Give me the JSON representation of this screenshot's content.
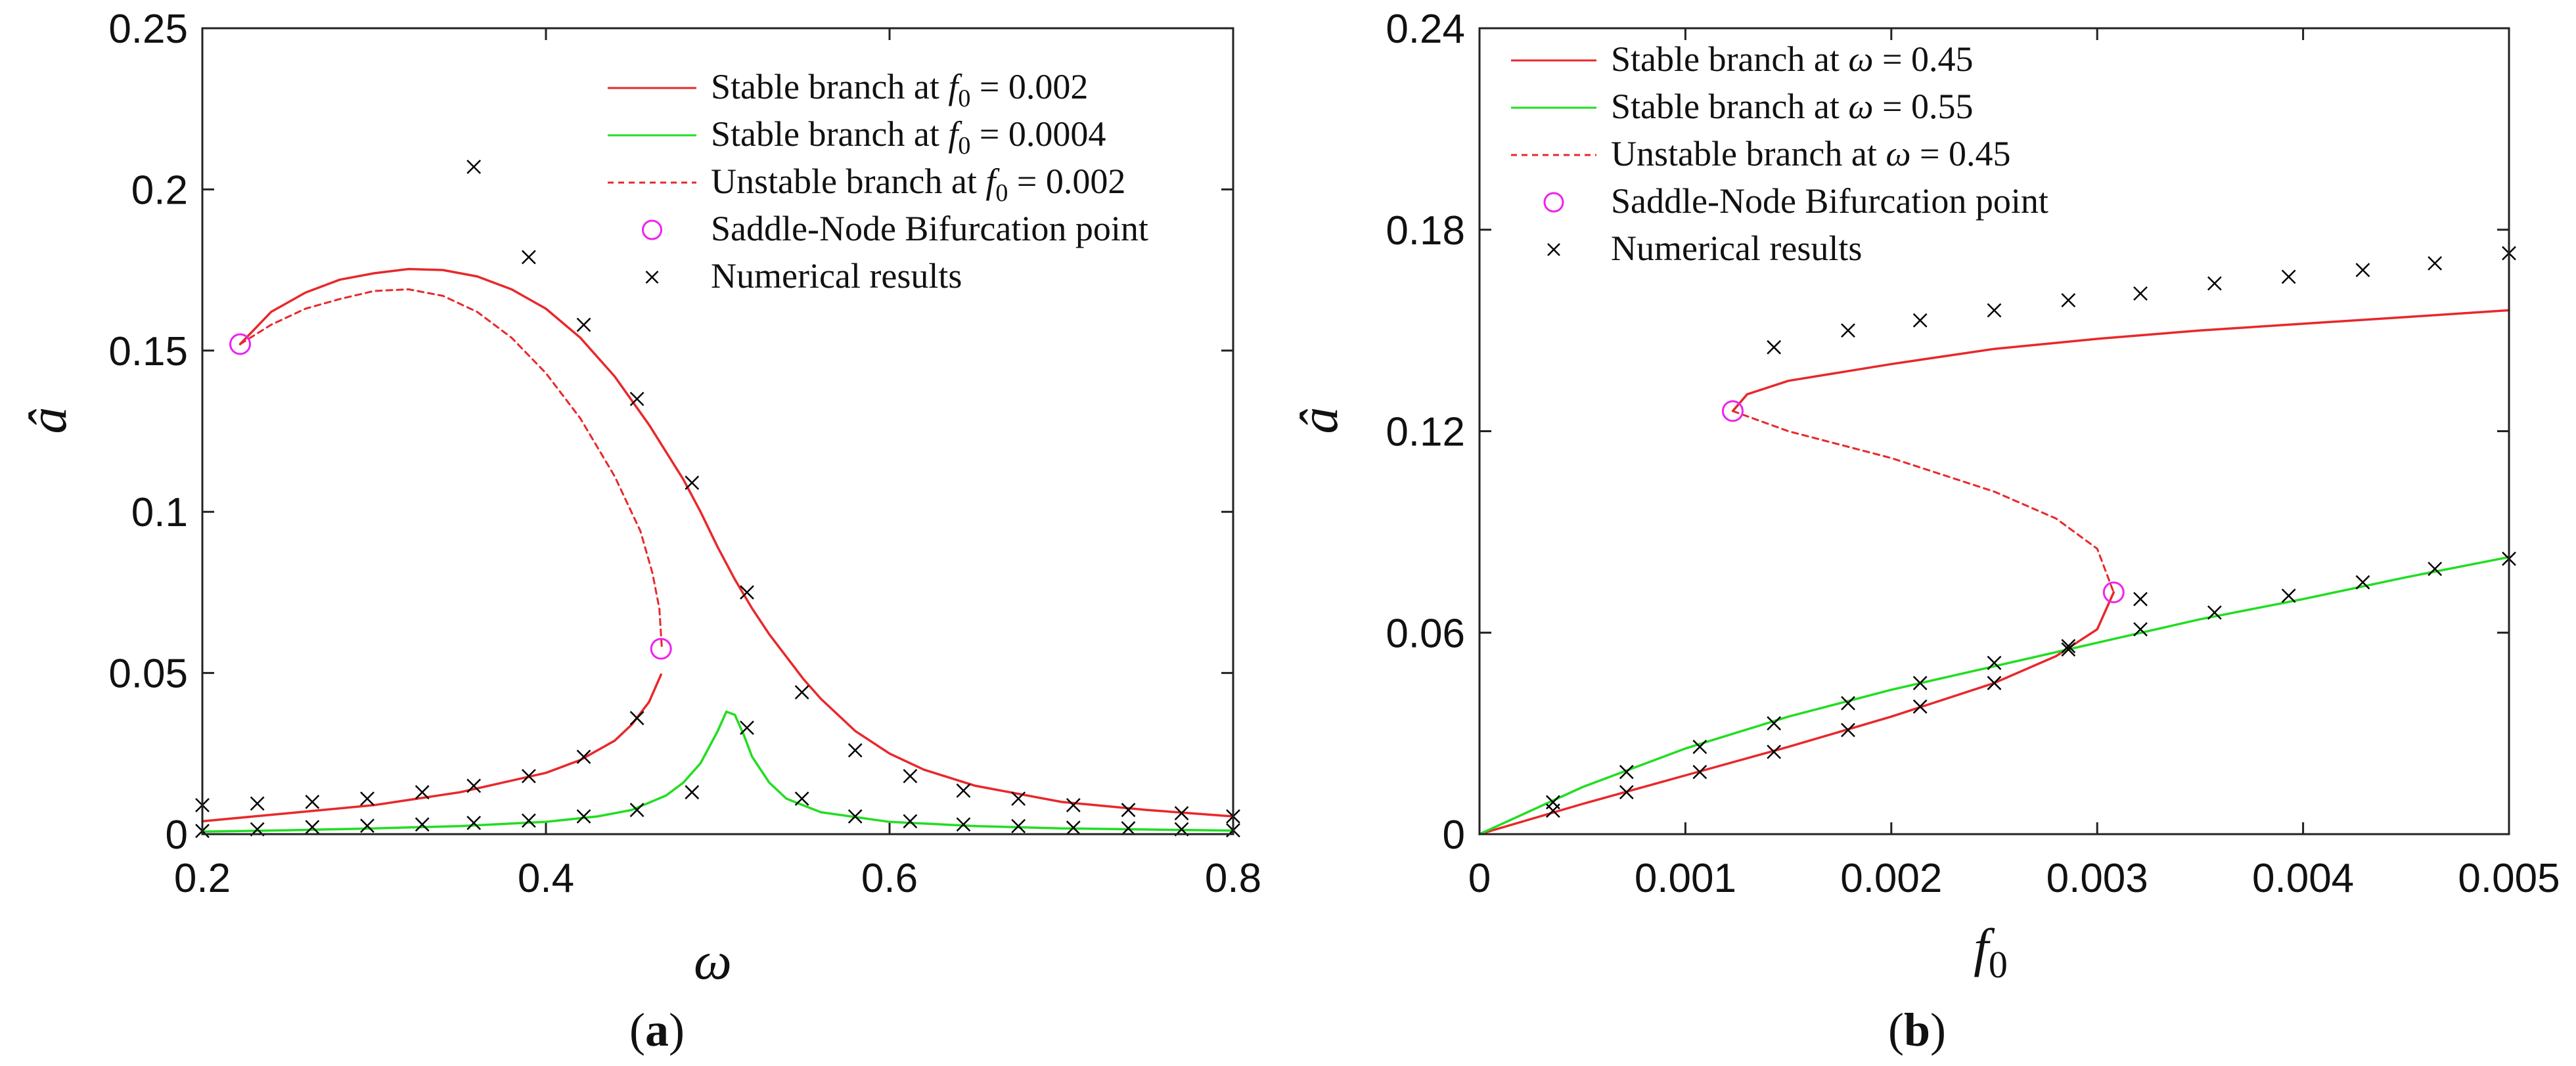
{
  "chart_data": [
    {
      "type": "line",
      "panel_label": "a",
      "caption_open": "(",
      "caption_close": ")",
      "xlabel": "ω",
      "ylabel": "â",
      "xlim": [
        0.2,
        0.8
      ],
      "ylim": [
        0,
        0.25
      ],
      "xticks": [
        0.2,
        0.4,
        0.6,
        0.8
      ],
      "xtick_labels": [
        "0.2",
        "0.4",
        "0.6",
        "0.8"
      ],
      "yticks": [
        0,
        0.05,
        0.1,
        0.15,
        0.2,
        0.25
      ],
      "ytick_labels": [
        "0",
        "0.05",
        "0.1",
        "0.15",
        "0.2",
        "0.25"
      ],
      "legend_position": "top-right",
      "series": [
        {
          "name": "Stable branch at f0 = 0.002",
          "legend_label": "Stable branch at",
          "legend_math_var": "f",
          "legend_math_sub": "0",
          "legend_math_rest": " = 0.002",
          "color": "#e8282b",
          "style": "solid",
          "segments": [
            [
              [
                0.222,
                0.152
              ],
              [
                0.24,
                0.162
              ],
              [
                0.26,
                0.168
              ],
              [
                0.28,
                0.172
              ],
              [
                0.3,
                0.174
              ],
              [
                0.32,
                0.1753
              ],
              [
                0.34,
                0.175
              ],
              [
                0.36,
                0.173
              ],
              [
                0.38,
                0.169
              ],
              [
                0.4,
                0.163
              ],
              [
                0.42,
                0.154
              ],
              [
                0.44,
                0.142
              ],
              [
                0.46,
                0.127
              ],
              [
                0.48,
                0.11
              ],
              [
                0.49,
                0.1
              ],
              [
                0.5,
                0.089
              ],
              [
                0.51,
                0.079
              ],
              [
                0.52,
                0.07
              ],
              [
                0.53,
                0.062
              ],
              [
                0.54,
                0.055
              ],
              [
                0.55,
                0.048
              ],
              [
                0.56,
                0.042
              ],
              [
                0.58,
                0.032
              ],
              [
                0.6,
                0.025
              ],
              [
                0.62,
                0.02
              ],
              [
                0.65,
                0.015
              ],
              [
                0.7,
                0.01
              ],
              [
                0.75,
                0.0075
              ],
              [
                0.8,
                0.0055
              ]
            ],
            [
              [
                0.2,
                0.004
              ],
              [
                0.25,
                0.0065
              ],
              [
                0.3,
                0.009
              ],
              [
                0.35,
                0.013
              ],
              [
                0.4,
                0.019
              ],
              [
                0.42,
                0.023
              ],
              [
                0.44,
                0.029
              ],
              [
                0.45,
                0.034
              ],
              [
                0.46,
                0.041
              ],
              [
                0.467,
                0.0495
              ]
            ]
          ]
        },
        {
          "name": "Stable branch at f0 = 0.0004",
          "legend_label": "Stable branch at",
          "legend_math_var": "f",
          "legend_math_sub": "0",
          "legend_math_rest": " = 0.0004",
          "color": "#22dd22",
          "style": "solid",
          "segments": [
            [
              [
                0.2,
                0.0008
              ],
              [
                0.25,
                0.0012
              ],
              [
                0.3,
                0.0018
              ],
              [
                0.35,
                0.0025
              ],
              [
                0.4,
                0.0038
              ],
              [
                0.43,
                0.0055
              ],
              [
                0.45,
                0.0075
              ],
              [
                0.47,
                0.012
              ],
              [
                0.48,
                0.016
              ],
              [
                0.49,
                0.022
              ],
              [
                0.5,
                0.032
              ],
              [
                0.505,
                0.038
              ],
              [
                0.51,
                0.037
              ],
              [
                0.515,
                0.031
              ],
              [
                0.52,
                0.024
              ],
              [
                0.53,
                0.016
              ],
              [
                0.54,
                0.011
              ],
              [
                0.56,
                0.0068
              ],
              [
                0.6,
                0.0038
              ],
              [
                0.65,
                0.0025
              ],
              [
                0.7,
                0.0018
              ],
              [
                0.8,
                0.0011
              ]
            ]
          ]
        },
        {
          "name": "Unstable branch at f0 = 0.002",
          "legend_label": "Unstable branch at",
          "legend_math_var": "f",
          "legend_math_sub": "0",
          "legend_math_rest": " = 0.002",
          "color": "#e8282b",
          "style": "dashed",
          "segments": [
            [
              [
                0.222,
                0.152
              ],
              [
                0.24,
                0.158
              ],
              [
                0.26,
                0.163
              ],
              [
                0.28,
                0.166
              ],
              [
                0.3,
                0.1685
              ],
              [
                0.32,
                0.169
              ],
              [
                0.34,
                0.167
              ],
              [
                0.36,
                0.162
              ],
              [
                0.38,
                0.154
              ],
              [
                0.4,
                0.143
              ],
              [
                0.42,
                0.129
              ],
              [
                0.44,
                0.111
              ],
              [
                0.455,
                0.094
              ],
              [
                0.462,
                0.081
              ],
              [
                0.466,
                0.07
              ],
              [
                0.4675,
                0.0575
              ]
            ]
          ]
        }
      ],
      "bifurcation_points": {
        "name": "Saddle-Node Bifurcation point",
        "color": "#ee22ee",
        "points": [
          [
            0.222,
            0.152
          ],
          [
            0.467,
            0.0575
          ]
        ]
      },
      "numerical_results": {
        "name": "Numerical results",
        "color": "#000000",
        "points": [
          [
            0.2,
            0.009
          ],
          [
            0.232,
            0.0095
          ],
          [
            0.264,
            0.01
          ],
          [
            0.296,
            0.011
          ],
          [
            0.328,
            0.013
          ],
          [
            0.358,
            0.015
          ],
          [
            0.39,
            0.018
          ],
          [
            0.422,
            0.024
          ],
          [
            0.453,
            0.036
          ],
          [
            0.358,
            0.207
          ],
          [
            0.39,
            0.179
          ],
          [
            0.422,
            0.158
          ],
          [
            0.453,
            0.135
          ],
          [
            0.485,
            0.109
          ],
          [
            0.517,
            0.075
          ],
          [
            0.549,
            0.044
          ],
          [
            0.58,
            0.026
          ],
          [
            0.612,
            0.018
          ],
          [
            0.643,
            0.0135
          ],
          [
            0.675,
            0.011
          ],
          [
            0.707,
            0.009
          ],
          [
            0.739,
            0.0075
          ],
          [
            0.77,
            0.0065
          ],
          [
            0.8,
            0.0055
          ],
          [
            0.2,
            0.001
          ],
          [
            0.232,
            0.0015
          ],
          [
            0.264,
            0.0022
          ],
          [
            0.296,
            0.0026
          ],
          [
            0.328,
            0.003
          ],
          [
            0.358,
            0.0035
          ],
          [
            0.39,
            0.0042
          ],
          [
            0.422,
            0.0055
          ],
          [
            0.453,
            0.0075
          ],
          [
            0.485,
            0.013
          ],
          [
            0.517,
            0.033
          ],
          [
            0.549,
            0.011
          ],
          [
            0.58,
            0.0055
          ],
          [
            0.612,
            0.004
          ],
          [
            0.643,
            0.003
          ],
          [
            0.675,
            0.0025
          ],
          [
            0.707,
            0.002
          ],
          [
            0.739,
            0.0018
          ],
          [
            0.77,
            0.0015
          ],
          [
            0.8,
            0.0012
          ]
        ]
      }
    },
    {
      "type": "line",
      "panel_label": "b",
      "caption_open": "(",
      "caption_close": ")",
      "xlabel": "f",
      "xlabel_sub": "0",
      "ylabel": "â",
      "xlim": [
        0,
        0.005
      ],
      "ylim": [
        0,
        0.24
      ],
      "xticks": [
        0,
        0.001,
        0.002,
        0.003,
        0.004,
        0.005
      ],
      "xtick_labels": [
        "0",
        "0.001",
        "0.002",
        "0.003",
        "0.004",
        "0.005"
      ],
      "yticks": [
        0,
        0.06,
        0.12,
        0.18,
        0.24
      ],
      "ytick_labels": [
        "0",
        "0.06",
        "0.12",
        "0.18",
        "0.24"
      ],
      "legend_position": "top-left",
      "series": [
        {
          "name": "Stable branch at ω = 0.45",
          "legend_label": "Stable branch at",
          "legend_math_var": "ω",
          "legend_math_sub": "",
          "legend_math_rest": " = 0.45",
          "color": "#e8282b",
          "style": "solid",
          "segments": [
            [
              [
                0,
                0
              ],
              [
                0.0005,
                0.009
              ],
              [
                0.001,
                0.0175
              ],
              [
                0.0015,
                0.026
              ],
              [
                0.002,
                0.035
              ],
              [
                0.0025,
                0.045
              ],
              [
                0.0028,
                0.053
              ],
              [
                0.003,
                0.061
              ],
              [
                0.00308,
                0.072
              ]
            ],
            [
              [
                0.00123,
                0.126
              ],
              [
                0.0013,
                0.131
              ],
              [
                0.0015,
                0.135
              ],
              [
                0.002,
                0.14
              ],
              [
                0.0025,
                0.1445
              ],
              [
                0.003,
                0.1475
              ],
              [
                0.0035,
                0.15
              ],
              [
                0.004,
                0.152
              ],
              [
                0.0045,
                0.154
              ],
              [
                0.005,
                0.156
              ]
            ]
          ]
        },
        {
          "name": "Stable branch at ω = 0.55",
          "legend_label": "Stable branch at",
          "legend_math_var": "ω",
          "legend_math_sub": "",
          "legend_math_rest": " = 0.55",
          "color": "#22dd22",
          "style": "solid",
          "segments": [
            [
              [
                0,
                0
              ],
              [
                0.0005,
                0.014
              ],
              [
                0.001,
                0.0255
              ],
              [
                0.0015,
                0.035
              ],
              [
                0.002,
                0.043
              ],
              [
                0.0025,
                0.05
              ],
              [
                0.003,
                0.057
              ],
              [
                0.0035,
                0.064
              ],
              [
                0.004,
                0.07
              ],
              [
                0.0045,
                0.0765
              ],
              [
                0.005,
                0.0825
              ]
            ]
          ]
        },
        {
          "name": "Unstable branch at ω = 0.45",
          "legend_label": "Unstable branch at",
          "legend_math_var": "ω",
          "legend_math_sub": "",
          "legend_math_rest": " = 0.45",
          "color": "#e8282b",
          "style": "dashed",
          "segments": [
            [
              [
                0.00123,
                0.126
              ],
              [
                0.0015,
                0.12
              ],
              [
                0.002,
                0.112
              ],
              [
                0.0025,
                0.102
              ],
              [
                0.0028,
                0.094
              ],
              [
                0.003,
                0.085
              ],
              [
                0.00308,
                0.072
              ]
            ]
          ]
        }
      ],
      "bifurcation_points": {
        "name": "Saddle-Node Bifurcation point",
        "color": "#ee22ee",
        "points": [
          [
            0.00123,
            0.126
          ],
          [
            0.00308,
            0.072
          ]
        ]
      },
      "numerical_results": {
        "name": "Numerical results",
        "color": "#000000",
        "points": [
          [
            0.000357,
            0.007
          ],
          [
            0.000714,
            0.0125
          ],
          [
            0.00107,
            0.0185
          ],
          [
            0.00143,
            0.0245
          ],
          [
            0.00179,
            0.031
          ],
          [
            0.00214,
            0.038
          ],
          [
            0.0025,
            0.045
          ],
          [
            0.00286,
            0.055
          ],
          [
            0.00143,
            0.145
          ],
          [
            0.00179,
            0.15
          ],
          [
            0.00214,
            0.153
          ],
          [
            0.0025,
            0.156
          ],
          [
            0.00286,
            0.159
          ],
          [
            0.00321,
            0.161
          ],
          [
            0.00357,
            0.164
          ],
          [
            0.00393,
            0.166
          ],
          [
            0.00429,
            0.168
          ],
          [
            0.00464,
            0.17
          ],
          [
            0.005,
            0.173
          ],
          [
            0.000357,
            0.0095
          ],
          [
            0.000714,
            0.0185
          ],
          [
            0.00107,
            0.026
          ],
          [
            0.00143,
            0.033
          ],
          [
            0.00179,
            0.039
          ],
          [
            0.00214,
            0.045
          ],
          [
            0.0025,
            0.051
          ],
          [
            0.00286,
            0.056
          ],
          [
            0.00321,
            0.061
          ],
          [
            0.00357,
            0.066
          ],
          [
            0.00393,
            0.071
          ],
          [
            0.00429,
            0.075
          ],
          [
            0.00464,
            0.079
          ],
          [
            0.005,
            0.082
          ],
          [
            0.00321,
            0.07
          ]
        ]
      }
    }
  ]
}
